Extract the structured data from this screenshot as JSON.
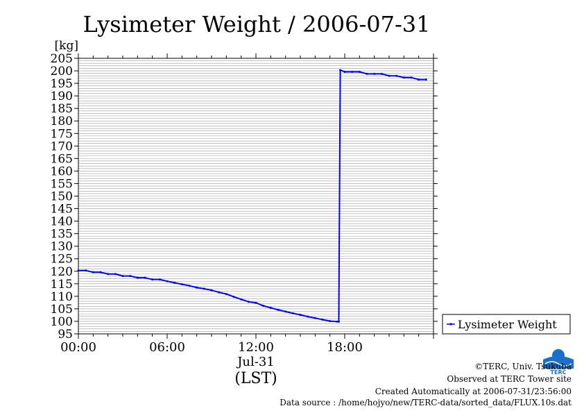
{
  "chart_data": {
    "type": "line",
    "title": "Lysimeter Weight / 2006-07-31",
    "unit_label": "[kg]",
    "x_tick_labels": [
      "00:00",
      "06:00",
      "12:00",
      "18:00"
    ],
    "x_date_label": "Jul-31",
    "x_axis_label": "(LST)",
    "y_ticks": [
      95,
      100,
      105,
      110,
      115,
      120,
      125,
      130,
      135,
      140,
      145,
      150,
      155,
      160,
      165,
      170,
      175,
      180,
      185,
      190,
      195,
      200,
      205
    ],
    "ylim": [
      95,
      205
    ],
    "xlim_hours": [
      0,
      24
    ],
    "grid": true,
    "legend_position": "right",
    "series": [
      {
        "name": "Lysimeter Weight",
        "color": "#0000ff",
        "x_hours": [
          0.0,
          0.5,
          1.0,
          1.5,
          2.0,
          2.5,
          3.0,
          3.5,
          4.0,
          4.5,
          5.0,
          5.5,
          6.0,
          6.5,
          7.0,
          7.5,
          8.0,
          8.5,
          9.0,
          9.5,
          10.0,
          10.5,
          11.0,
          11.5,
          12.0,
          12.5,
          13.0,
          13.5,
          14.0,
          14.5,
          15.0,
          15.5,
          16.0,
          16.5,
          17.0,
          17.5,
          17.6,
          17.7,
          18.0,
          18.5,
          19.0,
          19.5,
          20.0,
          20.5,
          21.0,
          21.5,
          22.0,
          22.5,
          23.0,
          23.5
        ],
        "values": [
          120.3,
          120.3,
          119.6,
          119.6,
          118.9,
          118.9,
          118.1,
          118.1,
          117.4,
          117.4,
          116.7,
          116.7,
          116.0,
          115.4,
          114.8,
          114.2,
          113.5,
          113.0,
          112.4,
          111.6,
          110.9,
          109.8,
          108.8,
          107.8,
          107.4,
          106.2,
          105.4,
          104.6,
          103.9,
          103.2,
          102.6,
          101.9,
          101.3,
          100.7,
          100.1,
          99.9,
          99.9,
          200.3,
          199.6,
          199.6,
          199.6,
          198.8,
          198.8,
          198.8,
          198.0,
          198.0,
          197.3,
          197.3,
          196.5,
          196.5
        ]
      }
    ]
  },
  "footer": {
    "copyright": "©TERC, Univ. Tsukuba",
    "observed": "Observed at TERC Tower site",
    "created": "Created Automatically at 2006-07-31/23:56:00",
    "source": "Data source : /home/hojyo/new/TERC-data/sorted_data/FLUX.10s.dat",
    "logo_text": "TERC"
  }
}
